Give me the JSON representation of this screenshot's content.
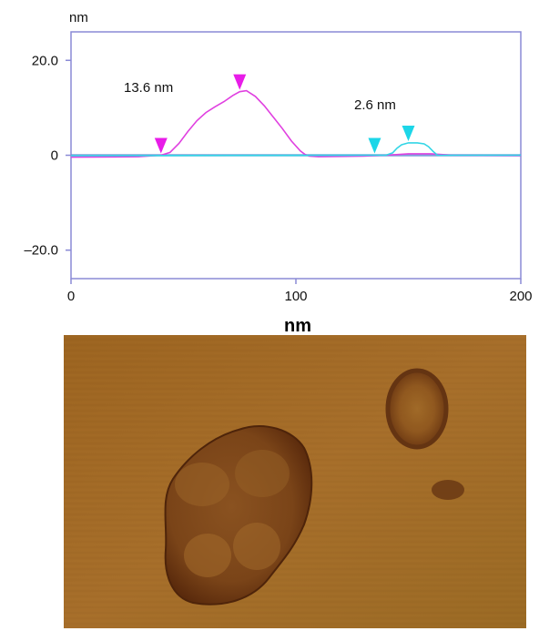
{
  "chart_data": {
    "type": "line",
    "y_unit_label": "nm",
    "xlabel": "nm",
    "xlim": [
      0,
      200
    ],
    "ylim": [
      -26,
      26
    ],
    "x_ticks": [
      {
        "value": 0,
        "label": "0"
      },
      {
        "value": 100,
        "label": "100"
      },
      {
        "value": 200,
        "label": "200"
      }
    ],
    "y_ticks": [
      {
        "value": 20,
        "label": "20.0"
      },
      {
        "value": 0,
        "label": "0"
      },
      {
        "value": -20,
        "label": "–20.0"
      }
    ],
    "grid": false,
    "frame_color": "#8a8ad6",
    "zero_line_color": "#6b8fd6",
    "series": [
      {
        "color": "#e040e0",
        "x": [
          0,
          30,
          40,
          44,
          48,
          52,
          56,
          60,
          64,
          68,
          72,
          75,
          78,
          82,
          86,
          90,
          94,
          98,
          102,
          104,
          106,
          110,
          130,
          140,
          150,
          160,
          170,
          200
        ],
        "y": [
          -0.4,
          -0.3,
          0,
          0.6,
          2.5,
          5.0,
          7.3,
          9.0,
          10.2,
          11.3,
          12.6,
          13.4,
          13.6,
          12.4,
          10.4,
          8.0,
          5.6,
          3.0,
          0.9,
          0.2,
          -0.2,
          -0.3,
          -0.2,
          0,
          0.3,
          0.3,
          0,
          -0.1
        ]
      },
      {
        "color": "#33d6e6",
        "x": [
          0,
          130,
          135,
          140,
          143,
          145,
          147,
          150,
          154,
          157,
          159,
          161,
          163,
          170,
          200
        ],
        "y": [
          -0.1,
          0,
          0,
          0,
          0.5,
          1.5,
          2.2,
          2.6,
          2.6,
          2.4,
          1.8,
          0.8,
          0,
          0,
          0
        ]
      }
    ],
    "markers": [
      {
        "x": 40,
        "color": "#e81ce8"
      },
      {
        "x": 75,
        "color": "#e81ce8"
      },
      {
        "x": 135,
        "color": "#1cd6e8"
      },
      {
        "x": 150,
        "color": "#1cd6e8"
      }
    ],
    "annotations": [
      {
        "text": "13.6 nm"
      },
      {
        "text": "2.6 nm"
      }
    ]
  },
  "afm_image": {
    "background_color": "#a06a26",
    "feature_color": "#6e3a14"
  }
}
